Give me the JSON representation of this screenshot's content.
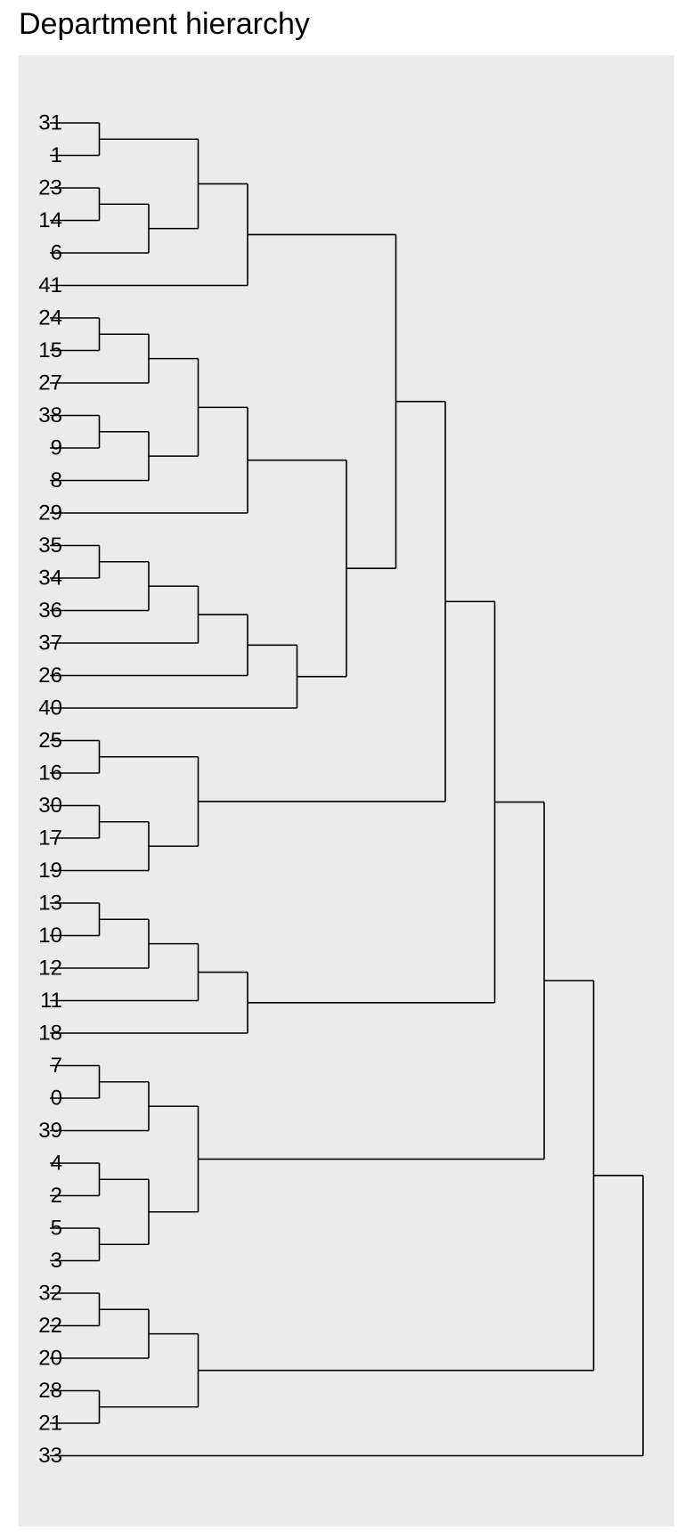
{
  "chart_data": {
    "type": "dendrogram",
    "title": "Department hierarchy",
    "orientation": "left-to-right",
    "grid": false,
    "panel_background": "#EBEBEB",
    "line_color": "#000000",
    "leaves": [
      "31",
      "1",
      "23",
      "14",
      "6",
      "41",
      "24",
      "15",
      "27",
      "38",
      "9",
      "8",
      "29",
      "35",
      "34",
      "36",
      "37",
      "26",
      "40",
      "25",
      "16",
      "30",
      "17",
      "19",
      "13",
      "10",
      "12",
      "11",
      "18",
      "7",
      "0",
      "39",
      "4",
      "2",
      "5",
      "3",
      "32",
      "22",
      "20",
      "28",
      "21",
      "33"
    ],
    "merges": [
      {
        "id": "a",
        "children": [
          "31",
          "1"
        ],
        "height": 1
      },
      {
        "id": "b",
        "children": [
          "23",
          "14"
        ],
        "height": 1
      },
      {
        "id": "c",
        "children": [
          "b",
          "6"
        ],
        "height": 2
      },
      {
        "id": "d",
        "children": [
          "a",
          "c"
        ],
        "height": 3
      },
      {
        "id": "e",
        "children": [
          "d",
          "41"
        ],
        "height": 4
      },
      {
        "id": "f",
        "children": [
          "24",
          "15"
        ],
        "height": 1
      },
      {
        "id": "g",
        "children": [
          "f",
          "27"
        ],
        "height": 2
      },
      {
        "id": "h",
        "children": [
          "38",
          "9"
        ],
        "height": 1
      },
      {
        "id": "i",
        "children": [
          "h",
          "8"
        ],
        "height": 2
      },
      {
        "id": "j",
        "children": [
          "g",
          "i"
        ],
        "height": 3
      },
      {
        "id": "k",
        "children": [
          "j",
          "29"
        ],
        "height": 4
      },
      {
        "id": "l",
        "children": [
          "35",
          "34"
        ],
        "height": 1
      },
      {
        "id": "m",
        "children": [
          "l",
          "36"
        ],
        "height": 2
      },
      {
        "id": "n",
        "children": [
          "m",
          "37"
        ],
        "height": 3
      },
      {
        "id": "o",
        "children": [
          "n",
          "26"
        ],
        "height": 4
      },
      {
        "id": "p",
        "children": [
          "o",
          "40"
        ],
        "height": 5
      },
      {
        "id": "q",
        "children": [
          "k",
          "p"
        ],
        "height": 6
      },
      {
        "id": "r",
        "children": [
          "e",
          "q"
        ],
        "height": 7
      },
      {
        "id": "s",
        "children": [
          "25",
          "16"
        ],
        "height": 1
      },
      {
        "id": "t",
        "children": [
          "30",
          "17"
        ],
        "height": 1
      },
      {
        "id": "u",
        "children": [
          "t",
          "19"
        ],
        "height": 2
      },
      {
        "id": "v",
        "children": [
          "s",
          "u"
        ],
        "height": 3
      },
      {
        "id": "w",
        "children": [
          "r",
          "v"
        ],
        "height": 8
      },
      {
        "id": "x",
        "children": [
          "13",
          "10"
        ],
        "height": 1
      },
      {
        "id": "y",
        "children": [
          "x",
          "12"
        ],
        "height": 2
      },
      {
        "id": "z",
        "children": [
          "y",
          "11"
        ],
        "height": 3
      },
      {
        "id": "aa",
        "children": [
          "z",
          "18"
        ],
        "height": 4
      },
      {
        "id": "ab",
        "children": [
          "w",
          "aa"
        ],
        "height": 9
      },
      {
        "id": "ac",
        "children": [
          "7",
          "0"
        ],
        "height": 1
      },
      {
        "id": "ad",
        "children": [
          "ac",
          "39"
        ],
        "height": 2
      },
      {
        "id": "ae",
        "children": [
          "4",
          "2"
        ],
        "height": 1
      },
      {
        "id": "af",
        "children": [
          "5",
          "3"
        ],
        "height": 1
      },
      {
        "id": "ag",
        "children": [
          "ae",
          "af"
        ],
        "height": 2
      },
      {
        "id": "ah",
        "children": [
          "ad",
          "ag"
        ],
        "height": 3
      },
      {
        "id": "ai",
        "children": [
          "ab",
          "ah"
        ],
        "height": 10
      },
      {
        "id": "aj",
        "children": [
          "32",
          "22"
        ],
        "height": 1
      },
      {
        "id": "ak",
        "children": [
          "aj",
          "20"
        ],
        "height": 2
      },
      {
        "id": "al",
        "children": [
          "28",
          "21"
        ],
        "height": 1
      },
      {
        "id": "am",
        "children": [
          "ak",
          "al"
        ],
        "height": 3
      },
      {
        "id": "an",
        "children": [
          "ai",
          "am"
        ],
        "height": 11
      },
      {
        "id": "ao",
        "children": [
          "an",
          "33"
        ],
        "height": 12
      }
    ]
  }
}
